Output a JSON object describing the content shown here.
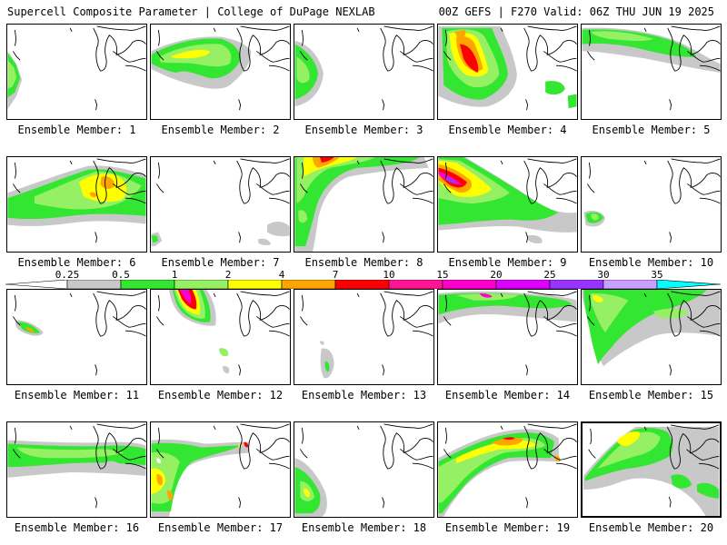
{
  "header": {
    "left": "Supercell Composite Parameter | College of DuPage NEXLAB",
    "right": "00Z GEFS | F270 Valid: 06Z THU JUN 19 2025"
  },
  "legend": {
    "ticks": [
      "0.25",
      "0.5",
      "1",
      "2",
      "4",
      "7",
      "10",
      "15",
      "20",
      "25",
      "30",
      "35"
    ],
    "colors": [
      "#c8c8c8",
      "#32e632",
      "#96f064",
      "#ffff00",
      "#ffa500",
      "#ff0000",
      "#ff1493",
      "#ff00cc",
      "#dc00ff",
      "#9933ff",
      "#c8a0ff",
      "#00ffff"
    ]
  },
  "panels": [
    {
      "label": "Ensemble Member: 1"
    },
    {
      "label": "Ensemble Member: 2"
    },
    {
      "label": "Ensemble Member: 3"
    },
    {
      "label": "Ensemble Member: 4"
    },
    {
      "label": "Ensemble Member: 5"
    },
    {
      "label": "Ensemble Member: 6"
    },
    {
      "label": "Ensemble Member: 7"
    },
    {
      "label": "Ensemble Member: 8"
    },
    {
      "label": "Ensemble Member: 9"
    },
    {
      "label": "Ensemble Member: 10"
    },
    {
      "label": "Ensemble Member: 11"
    },
    {
      "label": "Ensemble Member: 12"
    },
    {
      "label": "Ensemble Member: 13"
    },
    {
      "label": "Ensemble Member: 14"
    },
    {
      "label": "Ensemble Member: 15"
    },
    {
      "label": "Ensemble Member: 16"
    },
    {
      "label": "Ensemble Member: 17"
    },
    {
      "label": "Ensemble Member: 18"
    },
    {
      "label": "Ensemble Member: 19"
    },
    {
      "label": "Ensemble Member: 20"
    }
  ]
}
